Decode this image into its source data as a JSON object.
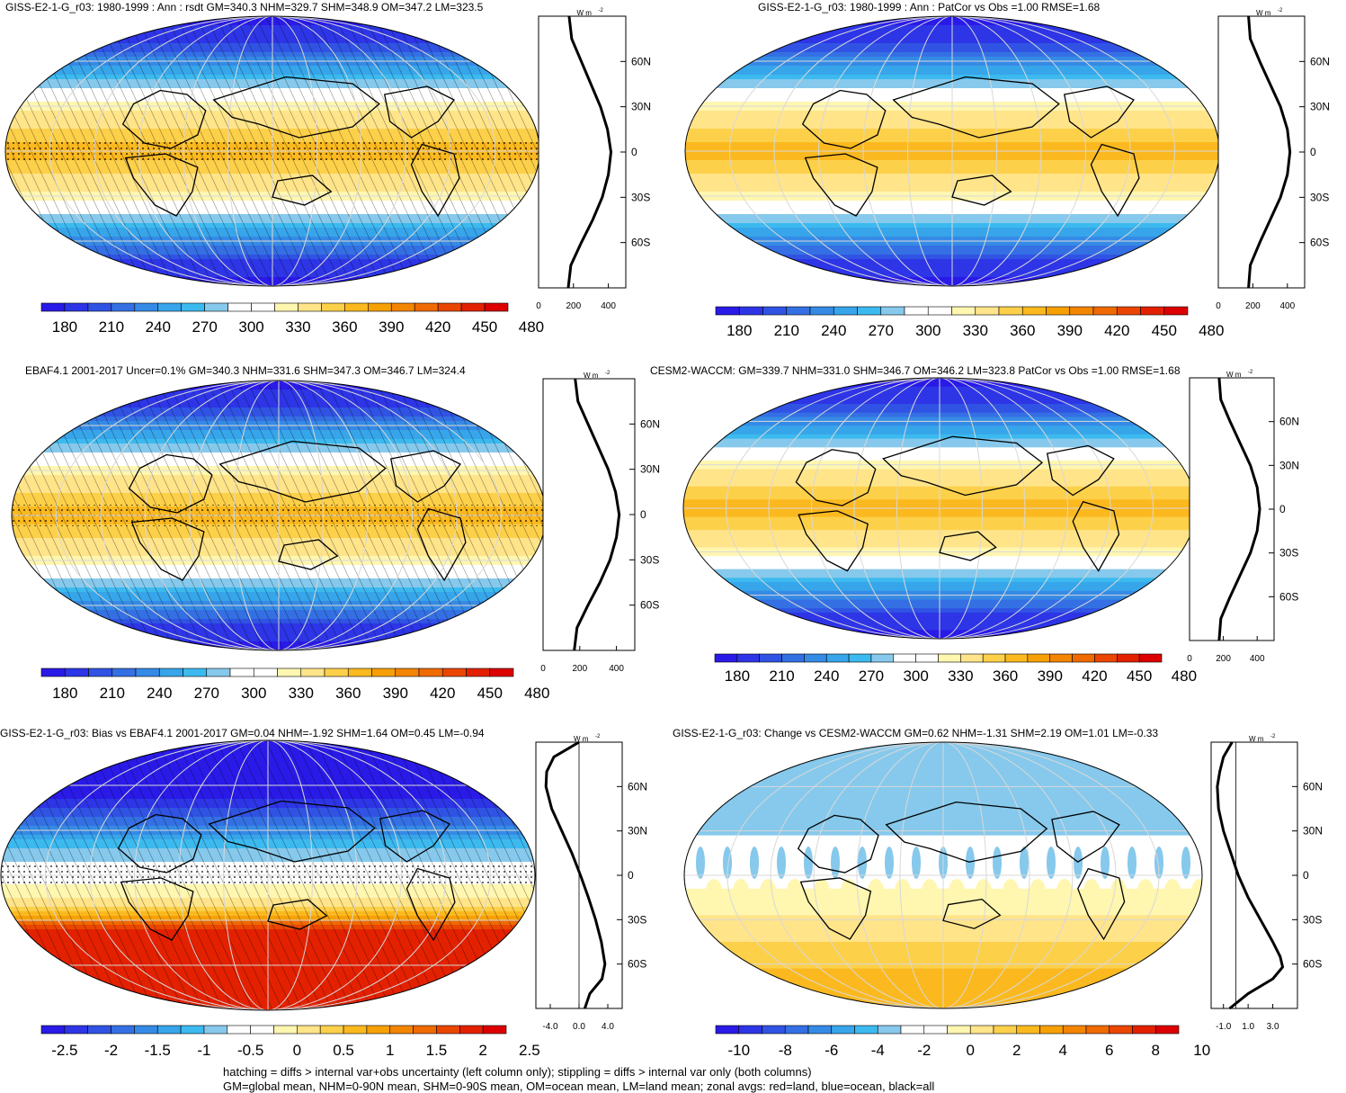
{
  "footer": {
    "line1": "hatching = diffs > internal var+obs uncertainty (left column only); stippling = diffs > internal var only (both columns)",
    "line2": "GM=global mean, NHM=0-90N mean, SHM=0-90S mean, OM=ocean mean, LM=land mean; zonal avgs: red=land, blue=ocean, black=all"
  },
  "colors": {
    "palette": [
      "#2a1ae8",
      "#2d35e6",
      "#3053e4",
      "#3470e3",
      "#358ae6",
      "#37a5ea",
      "#3cbaef",
      "#86c9ec",
      "#ffffff",
      "#ffffff",
      "#fff6b0",
      "#ffe48a",
      "#fdd04a",
      "#fbb91f",
      "#f7a005",
      "#f48500",
      "#ef6a00",
      "#ea4600",
      "#e32100",
      "#dc0000"
    ],
    "land_line": "#ff0000",
    "ocean_line": "#0000ff",
    "all_line": "#000000"
  },
  "chart_data": [
    {
      "type": "heatmap",
      "id": "p1",
      "title": "GISS-E2-1-G_r03: 1980-1999 : Ann : rsdt GM=340.3 NHM=329.7 SHM=348.9 OM=347.2 LM=323.5",
      "variable": "rsdt",
      "GM": 340.3,
      "NHM": 329.7,
      "SHM": 348.9,
      "OM": 347.2,
      "LM": 323.5,
      "hatching": true,
      "stippling": true,
      "colorbar": {
        "labels": [
          "180",
          "210",
          "240",
          "270",
          "300",
          "330",
          "360",
          "390",
          "420",
          "450",
          "480"
        ]
      },
      "zonal_mean": {
        "unit": "W m",
        "unit_sup": "-2",
        "x_ticks": [
          "0",
          "200",
          "400"
        ],
        "y_ticks": [
          "60N",
          "30N",
          "0",
          "30S",
          "60S"
        ],
        "lat": [
          90,
          75,
          60,
          45,
          30,
          15,
          0,
          -15,
          -30,
          -45,
          -60,
          -75,
          -90
        ],
        "values": [
          175,
          190,
          245,
          300,
          355,
          395,
          415,
          400,
          365,
          310,
          245,
          185,
          170
        ]
      }
    },
    {
      "type": "heatmap",
      "id": "p2",
      "title": "GISS-E2-1-G_r03: 1980-1999 : Ann : PatCor vs Obs =1.00 RMSE=1.68",
      "PatCor": 1.0,
      "RMSE": 1.68,
      "hatching": false,
      "stippling": false,
      "colorbar": {
        "labels": [
          "180",
          "210",
          "240",
          "270",
          "300",
          "330",
          "360",
          "390",
          "420",
          "450",
          "480"
        ]
      },
      "zonal_mean": {
        "unit": "W m",
        "unit_sup": "-2",
        "x_ticks": [
          "0",
          "200",
          "400"
        ],
        "y_ticks": [
          "60N",
          "30N",
          "0",
          "30S",
          "60S"
        ],
        "lat": [
          90,
          75,
          60,
          45,
          30,
          15,
          0,
          -15,
          -30,
          -45,
          -60,
          -75,
          -90
        ],
        "values": [
          175,
          185,
          240,
          300,
          360,
          400,
          415,
          400,
          360,
          300,
          240,
          185,
          175
        ]
      }
    },
    {
      "type": "heatmap",
      "id": "p3",
      "title": "EBAF4.1 2001-2017 Uncer=0.1% GM=340.3 NHM=331.6 SHM=347.3 OM=346.7 LM=324.4",
      "GM": 340.3,
      "NHM": 331.6,
      "SHM": 347.3,
      "OM": 346.7,
      "LM": 324.4,
      "hatching": true,
      "stippling": true,
      "colorbar": {
        "labels": [
          "180",
          "210",
          "240",
          "270",
          "300",
          "330",
          "360",
          "390",
          "420",
          "450",
          "480"
        ]
      },
      "zonal_mean": {
        "unit": "W m",
        "unit_sup": "-2",
        "x_ticks": [
          "0",
          "200",
          "400"
        ],
        "y_ticks": [
          "60N",
          "30N",
          "0",
          "30S",
          "60S"
        ],
        "lat": [
          90,
          75,
          60,
          45,
          30,
          15,
          0,
          -15,
          -30,
          -45,
          -60,
          -75,
          -90
        ],
        "values": [
          175,
          190,
          245,
          300,
          355,
          395,
          415,
          400,
          365,
          310,
          245,
          185,
          170
        ]
      }
    },
    {
      "type": "heatmap",
      "id": "p4",
      "title": "CESM2-WACCM: GM=339.7 NHM=331.0 SHM=346.7 OM=346.2 LM=323.8 PatCor vs Obs =1.00 RMSE=1.68",
      "GM": 339.7,
      "NHM": 331.0,
      "SHM": 346.7,
      "OM": 346.2,
      "LM": 323.8,
      "PatCor": 1.0,
      "RMSE": 1.68,
      "hatching": false,
      "stippling": false,
      "colorbar": {
        "labels": [
          "180",
          "210",
          "240",
          "270",
          "300",
          "330",
          "360",
          "390",
          "420",
          "450",
          "480"
        ]
      },
      "zonal_mean": {
        "unit": "W m",
        "unit_sup": "-2",
        "x_ticks": [
          "0",
          "200",
          "400"
        ],
        "y_ticks": [
          "60N",
          "30N",
          "0",
          "30S",
          "60S"
        ],
        "lat": [
          90,
          75,
          60,
          45,
          30,
          15,
          0,
          -15,
          -30,
          -45,
          -60,
          -75,
          -90
        ],
        "values": [
          175,
          185,
          240,
          300,
          360,
          400,
          415,
          400,
          360,
          300,
          240,
          185,
          175
        ]
      }
    },
    {
      "type": "heatmap",
      "id": "p5",
      "title": "GISS-E2-1-G_r03: Bias vs EBAF4.1 2001-2017 GM=0.04 NHM=-1.92 SHM=1.64 OM=0.45 LM=-0.94",
      "GM": 0.04,
      "NHM": -1.92,
      "SHM": 1.64,
      "OM": 0.45,
      "LM": -0.94,
      "hatching": true,
      "stippling": true,
      "colorbar": {
        "labels": [
          "-2.5",
          "-2",
          "-1.5",
          "-1",
          "-0.5",
          "0",
          "0.5",
          "1",
          "1.5",
          "2",
          "2.5"
        ]
      },
      "zonal_mean": {
        "unit": "W m",
        "unit_sup": "-2",
        "x_ticks": [
          "-4.0",
          "0.0",
          "4.0"
        ],
        "x_range": [
          -6,
          6
        ],
        "y_ticks": [
          "60N",
          "30N",
          "0",
          "30S",
          "60S"
        ],
        "lat": [
          90,
          80,
          70,
          60,
          45,
          30,
          15,
          0,
          -15,
          -30,
          -45,
          -60,
          -70,
          -80,
          -90
        ],
        "values": [
          0,
          -3.5,
          -4.5,
          -4.6,
          -3.8,
          -2.4,
          -1.0,
          0.2,
          1.3,
          2.3,
          3.1,
          3.6,
          3.2,
          1.5,
          0.8
        ]
      }
    },
    {
      "type": "heatmap",
      "id": "p6",
      "title": "GISS-E2-1-G_r03: Change vs CESM2-WACCM GM=0.62 NHM=-1.31 SHM=2.19 OM=1.01 LM=-0.33",
      "GM": 0.62,
      "NHM": -1.31,
      "SHM": 2.19,
      "OM": 1.01,
      "LM": -0.33,
      "hatching": false,
      "stippling": false,
      "colorbar": {
        "labels": [
          "-10",
          "-8",
          "-6",
          "-4",
          "-2",
          "0",
          "2",
          "4",
          "6",
          "8",
          "10"
        ]
      },
      "zonal_mean": {
        "unit": "W m",
        "unit_sup": "-2",
        "x_ticks": [
          "-1.0",
          "1.0",
          "3.0"
        ],
        "x_range": [
          -2,
          5
        ],
        "y_ticks": [
          "60N",
          "30N",
          "0",
          "30S",
          "60S"
        ],
        "lat": [
          90,
          80,
          70,
          60,
          45,
          30,
          15,
          0,
          -15,
          -30,
          -45,
          -55,
          -62,
          -70,
          -80,
          -90
        ],
        "values": [
          -0.3,
          -1.0,
          -1.3,
          -1.5,
          -1.4,
          -1.0,
          -0.4,
          0.2,
          1.0,
          2.0,
          3.0,
          3.6,
          3.8,
          3.0,
          1.0,
          -0.5
        ]
      }
    }
  ]
}
